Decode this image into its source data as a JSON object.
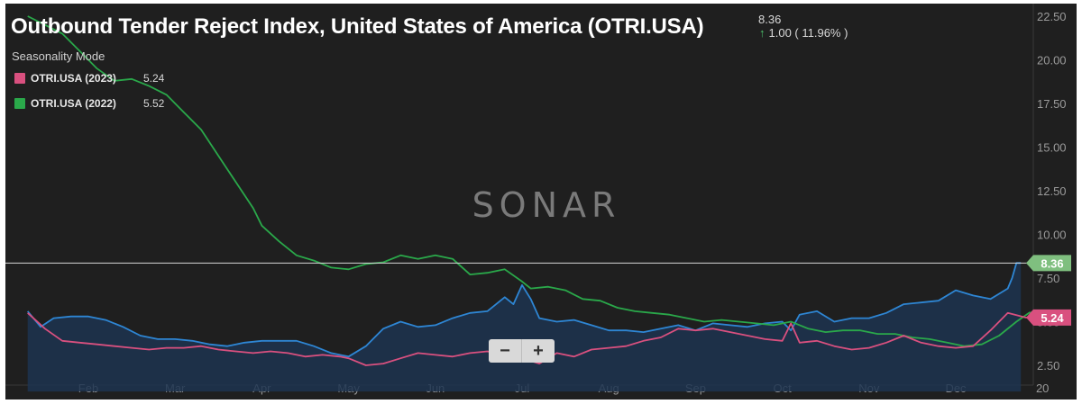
{
  "header": {
    "title": "Outbound Tender Reject Index, United States of America (OTRI.USA)",
    "last_value": "8.36",
    "change_arrow": "↑",
    "change_text": "1.00 ( 11.96% )",
    "mode_label": "Seasonality Mode"
  },
  "legend": [
    {
      "label": "OTRI.USA (2023)",
      "value": "5.24",
      "color": "#d9507f"
    },
    {
      "label": "OTRI.USA (2022)",
      "value": "5.52",
      "color": "#2aa84a"
    }
  ],
  "watermark": "SONAR",
  "zoom": {
    "minus": "−",
    "plus": "+"
  },
  "colors": {
    "background": "#1f1f1f",
    "current_area": "#2e86d4",
    "current_fill": "#1d3450",
    "crosshair": "#d8d8d8"
  },
  "chart_data": {
    "type": "line",
    "title": "Outbound Tender Reject Index, United States of America (OTRI.USA)",
    "x_unit": "month of year (1 = Jan 1)",
    "x_range": [
      1.3,
      13.0
    ],
    "ylim": [
      1.0,
      22.5
    ],
    "y_ticks": [
      "2.50",
      "5.00",
      "7.50",
      "10.00",
      "12.50",
      "15.00",
      "17.50",
      "20.00",
      "22.50"
    ],
    "x_ticks": [
      {
        "label": "Feb",
        "x": 2
      },
      {
        "label": "Mar",
        "x": 3
      },
      {
        "label": "Apr",
        "x": 4
      },
      {
        "label": "May",
        "x": 5
      },
      {
        "label": "Jun",
        "x": 6
      },
      {
        "label": "Jul",
        "x": 7
      },
      {
        "label": "Aug",
        "x": 8
      },
      {
        "label": "Sep",
        "x": 9
      },
      {
        "label": "Oct",
        "x": 10
      },
      {
        "label": "Nov",
        "x": 11
      },
      {
        "label": "Dec",
        "x": 12
      },
      {
        "label": "20",
        "x": 13
      }
    ],
    "crosshair_value": 8.36,
    "badges": [
      {
        "label": "8.36",
        "value": 8.36,
        "color": "#7fbf7f"
      },
      {
        "label": "5.24",
        "value": 5.24,
        "color": "#d9507f"
      }
    ],
    "series": [
      {
        "name": "OTRI.USA (current)",
        "color": "#2e86d4",
        "fill": true,
        "x": [
          1.3,
          1.45,
          1.6,
          1.8,
          2.0,
          2.2,
          2.4,
          2.6,
          2.8,
          3.0,
          3.2,
          3.4,
          3.6,
          3.8,
          4.0,
          4.2,
          4.4,
          4.6,
          4.8,
          5.0,
          5.2,
          5.4,
          5.6,
          5.8,
          6.0,
          6.2,
          6.4,
          6.6,
          6.8,
          6.9,
          7.0,
          7.1,
          7.2,
          7.4,
          7.6,
          7.8,
          8.0,
          8.2,
          8.4,
          8.6,
          8.8,
          9.0,
          9.2,
          9.4,
          9.6,
          9.8,
          10.0,
          10.1,
          10.2,
          10.4,
          10.6,
          10.8,
          11.0,
          11.2,
          11.4,
          11.6,
          11.8,
          12.0,
          12.2,
          12.4,
          12.5,
          12.6,
          12.65,
          12.7,
          12.75
        ],
        "values": [
          5.6,
          4.7,
          5.2,
          5.3,
          5.3,
          5.1,
          4.7,
          4.2,
          4.0,
          4.0,
          3.9,
          3.7,
          3.6,
          3.8,
          3.9,
          3.9,
          3.9,
          3.6,
          3.2,
          3.0,
          3.6,
          4.6,
          5.0,
          4.7,
          4.8,
          5.2,
          5.5,
          5.6,
          6.4,
          6.0,
          7.1,
          6.3,
          5.2,
          5.0,
          5.1,
          4.8,
          4.5,
          4.5,
          4.4,
          4.6,
          4.8,
          4.5,
          4.9,
          4.8,
          4.7,
          4.9,
          5.0,
          4.5,
          5.4,
          5.6,
          5.0,
          5.2,
          5.2,
          5.5,
          6.0,
          6.1,
          6.2,
          6.8,
          6.5,
          6.3,
          6.6,
          6.9,
          7.5,
          8.36,
          8.36
        ]
      },
      {
        "name": "OTRI.USA (2022)",
        "color": "#2aa84a",
        "fill": false,
        "x": [
          1.3,
          1.5,
          1.7,
          1.9,
          2.1,
          2.3,
          2.5,
          2.7,
          2.9,
          3.1,
          3.3,
          3.5,
          3.7,
          3.9,
          4.0,
          4.2,
          4.4,
          4.6,
          4.8,
          5.0,
          5.2,
          5.4,
          5.6,
          5.8,
          6.0,
          6.2,
          6.4,
          6.6,
          6.8,
          7.0,
          7.1,
          7.3,
          7.5,
          7.7,
          7.9,
          8.1,
          8.3,
          8.5,
          8.7,
          8.9,
          9.1,
          9.3,
          9.5,
          9.7,
          9.9,
          10.1,
          10.3,
          10.5,
          10.7,
          10.9,
          11.1,
          11.3,
          11.5,
          11.7,
          11.9,
          12.1,
          12.3,
          12.5,
          12.7,
          12.85,
          13.0
        ],
        "values": [
          22.5,
          22.0,
          21.5,
          20.5,
          19.5,
          18.8,
          18.9,
          18.5,
          18.0,
          17.0,
          16.0,
          14.5,
          13.0,
          11.5,
          10.5,
          9.6,
          8.8,
          8.5,
          8.1,
          8.0,
          8.3,
          8.4,
          8.8,
          8.6,
          8.8,
          8.6,
          7.7,
          7.8,
          8.0,
          7.3,
          6.9,
          7.0,
          6.8,
          6.3,
          6.2,
          5.8,
          5.6,
          5.5,
          5.4,
          5.2,
          5.0,
          5.1,
          5.0,
          4.9,
          4.8,
          5.0,
          4.6,
          4.4,
          4.5,
          4.5,
          4.3,
          4.3,
          4.1,
          4.0,
          3.8,
          3.6,
          3.7,
          4.2,
          5.0,
          5.52,
          5.5
        ]
      },
      {
        "name": "OTRI.USA (2023)",
        "color": "#d9507f",
        "fill": false,
        "x": [
          1.3,
          1.5,
          1.7,
          1.9,
          2.1,
          2.3,
          2.5,
          2.7,
          2.9,
          3.1,
          3.3,
          3.5,
          3.7,
          3.9,
          4.1,
          4.3,
          4.5,
          4.7,
          4.9,
          5.0,
          5.2,
          5.4,
          5.6,
          5.8,
          6.0,
          6.2,
          6.4,
          6.6,
          6.8,
          7.0,
          7.2,
          7.4,
          7.6,
          7.8,
          8.0,
          8.2,
          8.4,
          8.6,
          8.8,
          9.0,
          9.2,
          9.4,
          9.6,
          9.8,
          10.0,
          10.1,
          10.2,
          10.4,
          10.6,
          10.8,
          11.0,
          11.2,
          11.4,
          11.6,
          11.8,
          12.0,
          12.2,
          12.4,
          12.6,
          12.8,
          13.0
        ],
        "values": [
          5.5,
          4.6,
          3.9,
          3.8,
          3.7,
          3.6,
          3.5,
          3.4,
          3.5,
          3.5,
          3.6,
          3.4,
          3.3,
          3.2,
          3.3,
          3.2,
          3.0,
          3.1,
          3.0,
          2.9,
          2.5,
          2.6,
          2.9,
          3.2,
          3.1,
          3.0,
          3.2,
          3.3,
          3.1,
          2.9,
          2.6,
          3.2,
          3.0,
          3.4,
          3.5,
          3.6,
          3.9,
          4.1,
          4.6,
          4.5,
          4.6,
          4.4,
          4.2,
          4.0,
          3.9,
          4.9,
          3.8,
          3.9,
          3.6,
          3.4,
          3.5,
          3.8,
          4.2,
          3.8,
          3.6,
          3.5,
          3.6,
          4.5,
          5.5,
          5.24,
          5.2
        ]
      }
    ]
  }
}
